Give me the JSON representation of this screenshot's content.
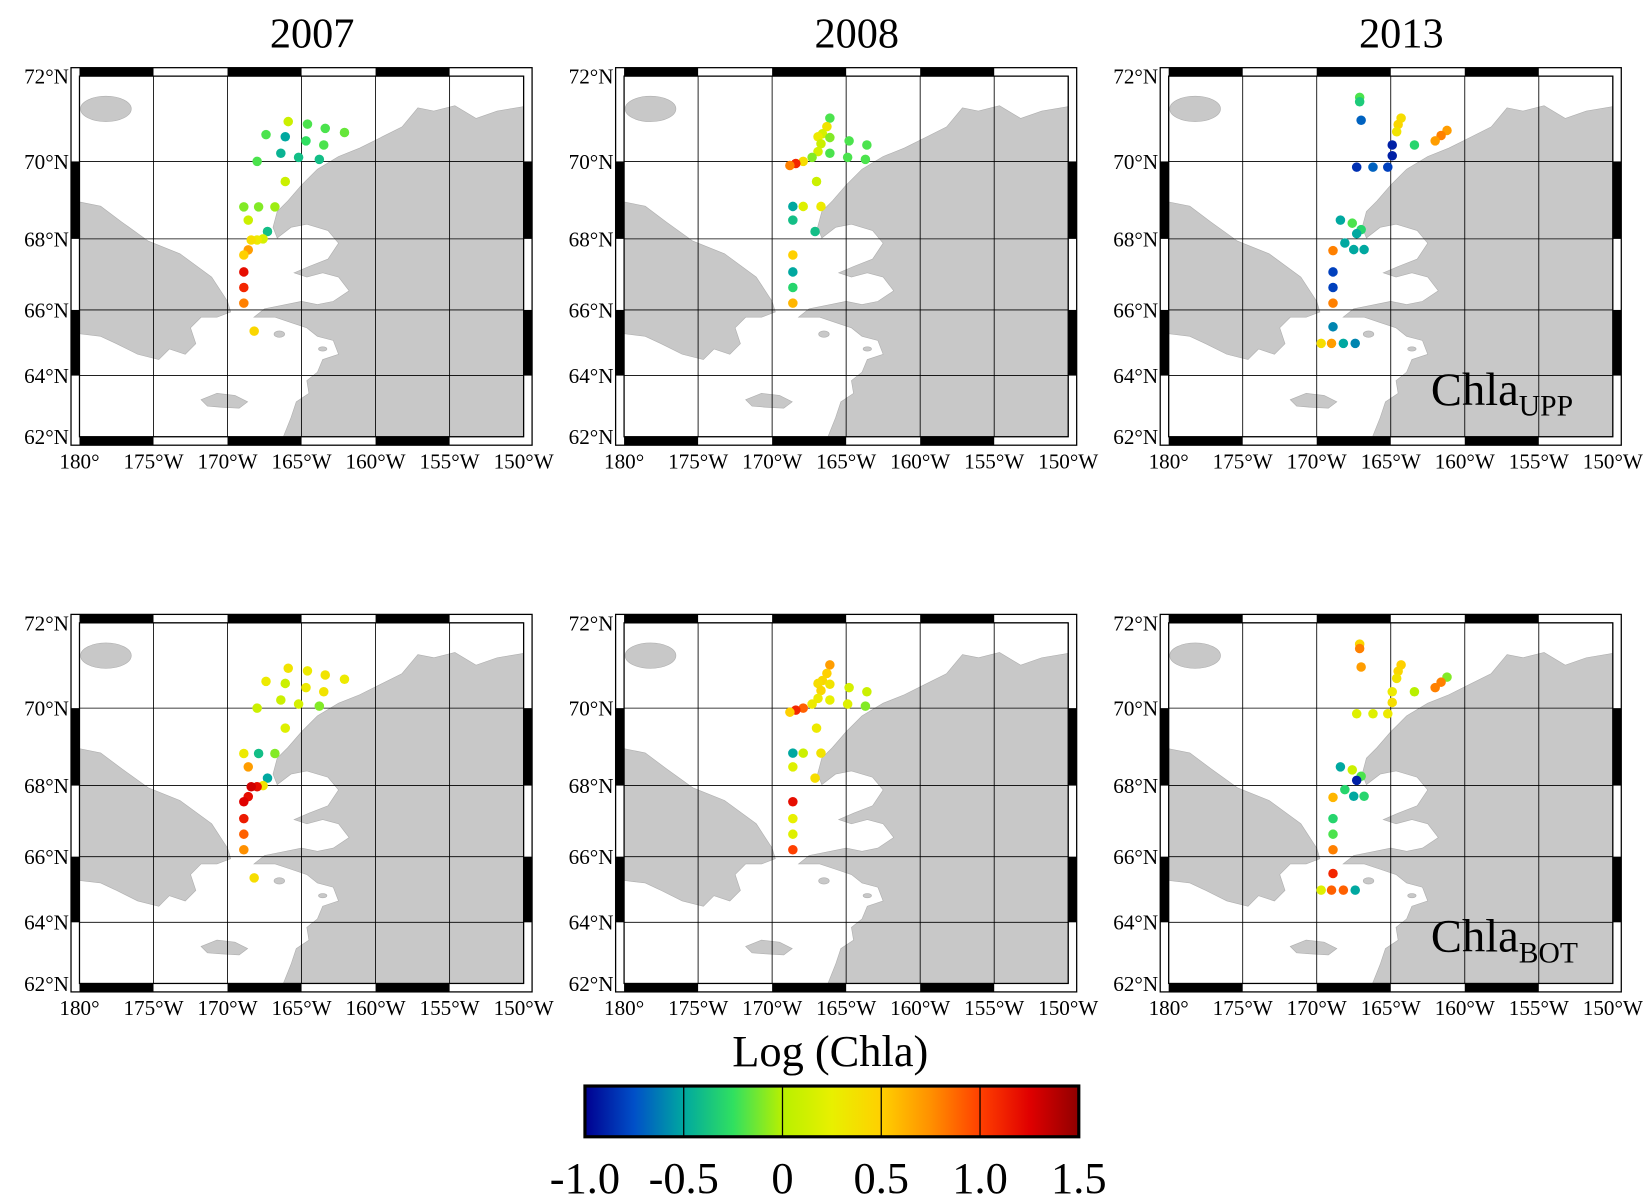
{
  "map": {
    "projection": "mercator",
    "lonlim": [
      -180,
      -150
    ],
    "latlim": [
      62,
      72
    ],
    "grid": true,
    "lonticks": [
      {
        "value": -180,
        "label": "180°"
      },
      {
        "value": -175,
        "label": "175°W"
      },
      {
        "value": -170,
        "label": "170°W"
      },
      {
        "value": -165,
        "label": "165°W"
      },
      {
        "value": -160,
        "label": "160°W"
      },
      {
        "value": -155,
        "label": "155°W"
      },
      {
        "value": -150,
        "label": "150°W"
      }
    ],
    "latticks": [
      {
        "value": 62,
        "label": "62°N"
      },
      {
        "value": 64,
        "label": "64°N"
      },
      {
        "value": 66,
        "label": "66°N"
      },
      {
        "value": 68,
        "label": "68°N"
      },
      {
        "value": 70,
        "label": "70°N"
      },
      {
        "value": 72,
        "label": "72°N"
      }
    ]
  },
  "rows": [
    {
      "label": "Chla",
      "subscript": "UPP"
    },
    {
      "label": "Chla",
      "subscript": "BOT"
    }
  ],
  "years": [
    {
      "year": "2007",
      "lon": [
        -165.9,
        -164.6,
        -167.4,
        -166.1,
        -163.4,
        -162.1,
        -164.7,
        -163.5,
        -166.4,
        -165.2,
        -168.0,
        -163.8,
        -166.1,
        -168.9,
        -167.9,
        -166.8,
        -168.6,
        -167.3,
        -167.6,
        -168.0,
        -168.4,
        -168.6,
        -168.9,
        -168.9,
        -168.9,
        -168.9,
        -168.2
      ],
      "lat": [
        70.96,
        70.9,
        70.65,
        70.6,
        70.8,
        70.7,
        70.5,
        70.4,
        70.2,
        70.1,
        70.0,
        70.05,
        69.5,
        68.85,
        68.85,
        68.85,
        68.5,
        68.2,
        68.0,
        67.97,
        67.97,
        67.7,
        67.56,
        67.09,
        66.65,
        66.2,
        65.37
      ],
      "values": [
        [
          0.1,
          -0.2,
          -0.2,
          -0.5,
          -0.2,
          -0.15,
          -0.25,
          -0.2,
          -0.45,
          -0.4,
          -0.2,
          -0.4,
          0.1,
          -0.1,
          -0.1,
          -0.05,
          0.1,
          -0.4,
          0.15,
          0.3,
          0.4,
          0.7,
          0.5,
          1.2,
          1.1,
          0.8,
          0.45
        ],
        [
          0.35,
          0.3,
          0.3,
          0.1,
          0.35,
          0.3,
          0.3,
          0.35,
          0.1,
          0.15,
          0.1,
          -0.1,
          0.2,
          0.3,
          -0.4,
          -0.1,
          0.7,
          -0.5,
          0.35,
          1.2,
          1.3,
          1.2,
          1.25,
          1.15,
          0.9,
          0.75,
          0.4
        ]
      ]
    },
    {
      "year": "2008",
      "lon": [
        -166.1,
        -166.3,
        -166.6,
        -166.9,
        -166.1,
        -164.8,
        -163.6,
        -166.7,
        -166.9,
        -167.3,
        -166.1,
        -164.9,
        -163.7,
        -167.9,
        -168.4,
        -168.8,
        -167.0,
        -168.6,
        -167.9,
        -166.7,
        -168.6,
        -167.1,
        -168.6,
        -168.6,
        -168.6,
        -168.6
      ],
      "lat": [
        71.04,
        70.84,
        70.67,
        70.6,
        70.58,
        70.5,
        70.4,
        70.43,
        70.24,
        70.1,
        70.2,
        70.1,
        70.05,
        70.0,
        69.95,
        69.9,
        69.5,
        68.86,
        68.86,
        68.86,
        68.5,
        68.2,
        67.56,
        67.09,
        66.65,
        66.2
      ],
      "values": [
        [
          -0.2,
          0.35,
          0.15,
          0.3,
          -0.1,
          -0.2,
          -0.2,
          0.1,
          0.15,
          -0.1,
          -0.2,
          -0.2,
          -0.2,
          0.4,
          1.1,
          0.8,
          0.1,
          -0.5,
          0.2,
          0.3,
          -0.4,
          -0.4,
          0.5,
          -0.5,
          -0.3,
          0.6
        ],
        [
          0.7,
          0.5,
          0.45,
          0.4,
          0.35,
          0.15,
          0.1,
          0.45,
          0.3,
          0.3,
          0.25,
          0.2,
          -0.1,
          0.9,
          1.1,
          0.5,
          0.3,
          -0.5,
          0.1,
          0.35,
          0.2,
          0.4,
          1.2,
          0.25,
          0.2,
          1.0
        ]
      ]
    },
    {
      "year": "2013",
      "lon": [
        -167.1,
        -167.1,
        -167.0,
        -164.3,
        -164.5,
        -164.6,
        -161.2,
        -161.6,
        -162.0,
        -163.4,
        -164.9,
        -164.9,
        -167.3,
        -166.2,
        -165.2,
        -168.4,
        -167.6,
        -167.0,
        -167.3,
        -168.1,
        -167.5,
        -166.8,
        -168.9,
        -168.9,
        -168.9,
        -168.9,
        -168.9,
        -169.7,
        -169.0,
        -168.2,
        -167.4
      ],
      "lat": [
        71.52,
        71.42,
        70.99,
        71.04,
        70.89,
        70.72,
        70.75,
        70.63,
        70.5,
        70.4,
        70.4,
        70.14,
        69.86,
        69.86,
        69.86,
        68.5,
        68.42,
        68.25,
        68.14,
        67.89,
        67.71,
        67.71,
        67.68,
        67.09,
        66.65,
        66.2,
        65.5,
        65.0,
        65.0,
        65.0,
        65.0
      ],
      "values": [
        [
          -0.2,
          -0.35,
          -0.7,
          0.4,
          0.45,
          0.35,
          0.7,
          0.8,
          0.7,
          -0.3,
          -0.9,
          -0.9,
          -0.85,
          -0.7,
          -0.8,
          -0.5,
          -0.2,
          -0.3,
          -0.5,
          -0.5,
          -0.5,
          -0.5,
          0.8,
          -0.8,
          -0.8,
          0.8,
          -0.6,
          0.4,
          0.7,
          -0.5,
          -0.6
        ],
        [
          0.45,
          0.8,
          0.7,
          0.5,
          0.45,
          0.35,
          -0.1,
          0.8,
          0.8,
          0.0,
          0.3,
          0.4,
          0.2,
          0.2,
          0.3,
          -0.5,
          0.1,
          -0.2,
          -0.9,
          -0.3,
          -0.5,
          -0.3,
          0.6,
          -0.3,
          -0.2,
          0.8,
          1.1,
          0.2,
          0.9,
          0.9,
          -0.5
        ]
      ]
    }
  ],
  "colorbar": {
    "title": "Log (Chla)",
    "range": [
      -1,
      1.5
    ],
    "ticks": [
      {
        "value": -1,
        "label": "-1.0"
      },
      -0.5,
      0,
      0.5,
      {
        "value": 1,
        "label": "1.0"
      },
      1.5
    ],
    "colormap": [
      "#000090",
      "#0050c8",
      "#00a8a0",
      "#30e060",
      "#b8f000",
      "#e8f000",
      "#ffd000",
      "#ff9000",
      "#ff4000",
      "#e00000",
      "#900000"
    ]
  }
}
